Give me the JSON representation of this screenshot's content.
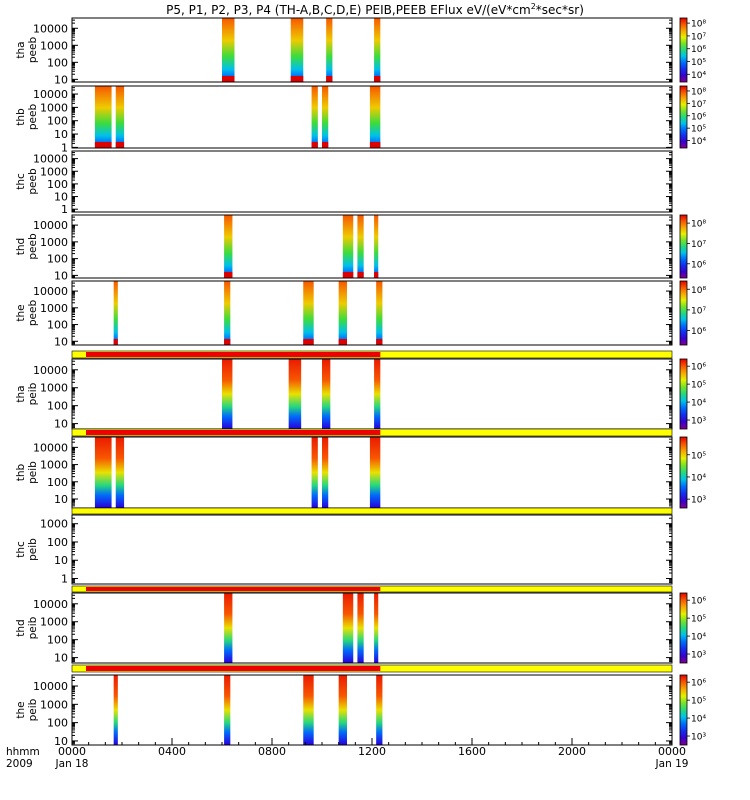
{
  "title_main": "P5, P1, P2, P3, P4 (TH-A,B,C,D,E) PEIB,PEEB EFlux eV/(eV*cm",
  "title_sup": "2",
  "title_end": "*sec*sr)",
  "time_label": "hhmm",
  "year_label": "2009",
  "x_ticks": [
    "0000",
    "0400",
    "0800",
    "1200",
    "1600",
    "2000",
    "0000"
  ],
  "x_date_start": "Jan 18",
  "x_date_end": "Jan 19",
  "chart_data": {
    "type": "heatmap",
    "x_range": [
      "2009-01-18 00:00",
      "2009-01-19 00:00"
    ],
    "y_scale": "log",
    "y_unit": "eV",
    "panels": [
      {
        "probe": "tha",
        "species": "peeb",
        "label1": "tha",
        "label2": "peeb",
        "y_ticks": [
          "10",
          "100",
          "1000",
          "10000"
        ],
        "ylim": [
          7,
          40000
        ],
        "colorbar": {
          "labels": [
            "10⁴",
            "10⁵",
            "10⁶",
            "10⁷",
            "10⁸"
          ],
          "min_exp": 3.4,
          "max_exp": 8.4
        },
        "intervals": [
          [
            "06:00",
            "06:30"
          ],
          [
            "08:45",
            "09:15"
          ],
          [
            "10:10",
            "10:25"
          ],
          [
            "12:05",
            "12:20"
          ]
        ],
        "style": "e"
      },
      {
        "probe": "thb",
        "species": "peeb",
        "label1": "thb",
        "label2": "peeb",
        "y_ticks": [
          "1",
          "10",
          "100",
          "1000",
          "10000"
        ],
        "ylim": [
          0.9,
          40000
        ],
        "colorbar": {
          "labels": [
            "10⁴",
            "10⁵",
            "10⁶",
            "10⁷",
            "10⁸"
          ],
          "min_exp": 3.4,
          "max_exp": 8.4
        },
        "intervals": [
          [
            "00:55",
            "01:35"
          ],
          [
            "01:45",
            "02:05"
          ],
          [
            "09:35",
            "09:50"
          ],
          [
            "10:00",
            "10:15"
          ],
          [
            "11:55",
            "12:20"
          ]
        ],
        "style": "e"
      },
      {
        "probe": "thc",
        "species": "peeb",
        "label1": "thc",
        "label2": "peeb",
        "y_ticks": [
          "1",
          "10",
          "100",
          "1000",
          "10000"
        ],
        "ylim": [
          0.6,
          40000
        ],
        "colorbar": null,
        "intervals": [],
        "style": "e"
      },
      {
        "probe": "thd",
        "species": "peeb",
        "label1": "thd",
        "label2": "peeb",
        "y_ticks": [
          "10",
          "100",
          "1000",
          "10000"
        ],
        "ylim": [
          7,
          40000
        ],
        "colorbar": {
          "labels": [
            "10⁶",
            "10⁷",
            "10⁸"
          ],
          "min_exp": 5.3,
          "max_exp": 8.4
        },
        "intervals": [
          [
            "06:05",
            "06:25"
          ],
          [
            "10:50",
            "11:15"
          ],
          [
            "11:25",
            "11:40"
          ],
          [
            "12:05",
            "12:15"
          ]
        ],
        "style": "e"
      },
      {
        "probe": "the",
        "species": "peeb",
        "label1": "the",
        "label2": "peeb",
        "y_ticks": [
          "10",
          "100",
          "1000",
          "10000"
        ],
        "ylim": [
          6,
          40000
        ],
        "colorbar": {
          "labels": [
            "10⁶",
            "10⁷",
            "10⁸"
          ],
          "min_exp": 5.3,
          "max_exp": 8.4
        },
        "intervals": [
          [
            "01:40",
            "01:50"
          ],
          [
            "06:05",
            "06:20"
          ],
          [
            "09:15",
            "09:40"
          ],
          [
            "10:40",
            "11:00"
          ],
          [
            "12:10",
            "12:25"
          ]
        ],
        "style": "e"
      },
      {
        "probe": "tha",
        "species": "peib",
        "label1": "tha",
        "label2": "peib",
        "y_ticks": [
          "10",
          "100",
          "1000",
          "10000"
        ],
        "ylim": [
          5,
          40000
        ],
        "colorbar": {
          "labels": [
            "10³",
            "10⁴",
            "10⁵",
            "10⁶"
          ],
          "min_exp": 2.5,
          "max_exp": 6.4
        },
        "intervals": [
          [
            "06:00",
            "06:25"
          ],
          [
            "08:40",
            "09:10"
          ],
          [
            "10:00",
            "10:20"
          ],
          [
            "12:05",
            "12:20"
          ]
        ],
        "style": "i",
        "mode_bar": {
          "red_end": "12:20"
        }
      },
      {
        "probe": "thb",
        "species": "peib",
        "label1": "thb",
        "label2": "peib",
        "y_ticks": [
          "10",
          "100",
          "1000",
          "10000"
        ],
        "ylim": [
          3,
          40000
        ],
        "colorbar": {
          "labels": [
            "10³",
            "10⁴",
            "10⁵"
          ],
          "min_exp": 2.6,
          "max_exp": 5.8
        },
        "intervals": [
          [
            "00:55",
            "01:35"
          ],
          [
            "01:45",
            "02:05"
          ],
          [
            "09:35",
            "09:50"
          ],
          [
            "10:00",
            "10:15"
          ],
          [
            "11:55",
            "12:20"
          ]
        ],
        "style": "i",
        "mode_bar": {
          "red_end": "12:20"
        }
      },
      {
        "probe": "thc",
        "species": "peib",
        "label1": "thc",
        "label2": "peib",
        "y_ticks": [
          "1",
          "10",
          "100",
          "1000"
        ],
        "ylim": [
          0.5,
          3000
        ],
        "colorbar": null,
        "intervals": [],
        "style": "i",
        "mode_bar": {
          "red_end": null
        }
      },
      {
        "probe": "thd",
        "species": "peib",
        "label1": "thd",
        "label2": "peib",
        "y_ticks": [
          "10",
          "100",
          "1000",
          "10000"
        ],
        "ylim": [
          5,
          40000
        ],
        "colorbar": {
          "labels": [
            "10³",
            "10⁴",
            "10⁵",
            "10⁶"
          ],
          "min_exp": 2.5,
          "max_exp": 6.4
        },
        "intervals": [
          [
            "06:05",
            "06:25"
          ],
          [
            "10:50",
            "11:15"
          ],
          [
            "11:25",
            "11:40"
          ],
          [
            "12:05",
            "12:15"
          ]
        ],
        "style": "i",
        "mode_bar": {
          "red_end": "12:20"
        }
      },
      {
        "probe": "the",
        "species": "peib",
        "label1": "the",
        "label2": "peib",
        "y_ticks": [
          "10",
          "100",
          "1000",
          "10000"
        ],
        "ylim": [
          6,
          40000
        ],
        "colorbar": {
          "labels": [
            "10³",
            "10⁴",
            "10⁵",
            "10⁶"
          ],
          "min_exp": 2.5,
          "max_exp": 6.4
        },
        "intervals": [
          [
            "01:40",
            "01:50"
          ],
          [
            "06:05",
            "06:20"
          ],
          [
            "09:15",
            "09:40"
          ],
          [
            "10:40",
            "11:00"
          ],
          [
            "12:10",
            "12:25"
          ]
        ],
        "style": "i",
        "mode_bar": {
          "red_end": "12:20"
        }
      }
    ]
  }
}
